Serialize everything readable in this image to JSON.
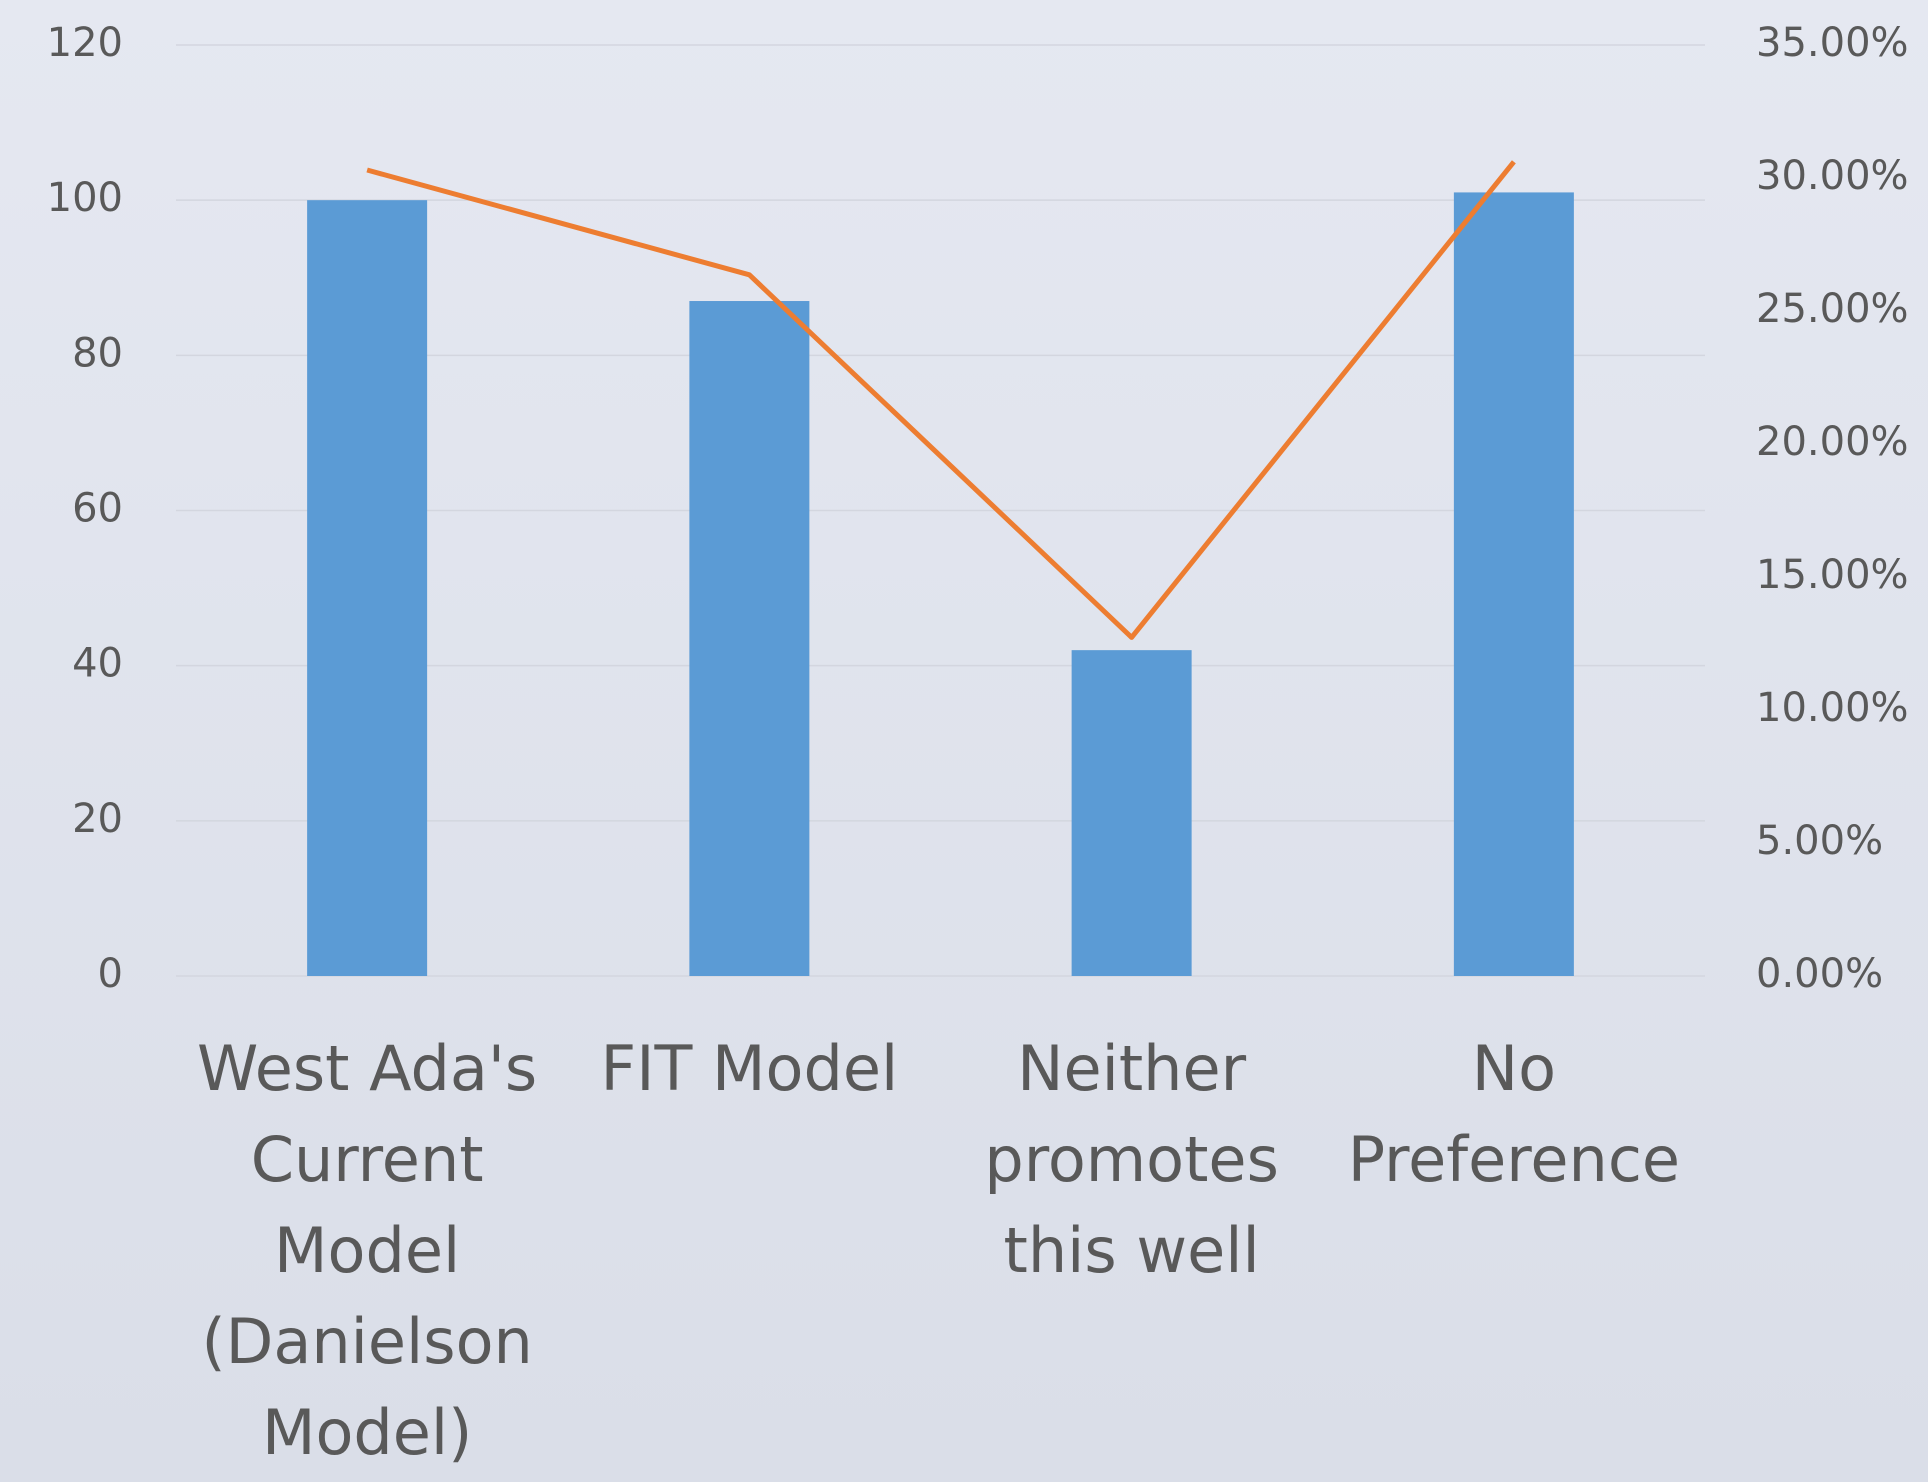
{
  "chart_data": {
    "type": "bar-line",
    "categories": [
      "West Ada's Current Model (Danielson Model)",
      "FIT Model",
      "Neither promotes this well",
      "No Preference"
    ],
    "series": [
      {
        "type": "bar",
        "color": "#5b9bd5",
        "values": [
          100,
          87,
          42,
          101
        ]
      },
      {
        "type": "line",
        "axis": "y2",
        "color": "#ed7d31",
        "values": [
          30.3,
          26.36,
          12.73,
          30.61
        ]
      }
    ],
    "ylim": [
      0,
      120
    ],
    "yticks": [
      0,
      20,
      40,
      60,
      80,
      100,
      120
    ],
    "y2lim": [
      0,
      35
    ],
    "y2ticks": [
      {
        "value": 0,
        "label": "0.00%"
      },
      {
        "value": 5,
        "label": "5.00%"
      },
      {
        "value": 10,
        "label": "10.00%"
      },
      {
        "value": 15,
        "label": "15.00%"
      },
      {
        "value": 20,
        "label": "20.00%"
      },
      {
        "value": 25,
        "label": "25.00%"
      },
      {
        "value": 30,
        "label": "30.00%"
      },
      {
        "value": 35,
        "label": "35.00%"
      }
    ],
    "grid": true
  }
}
